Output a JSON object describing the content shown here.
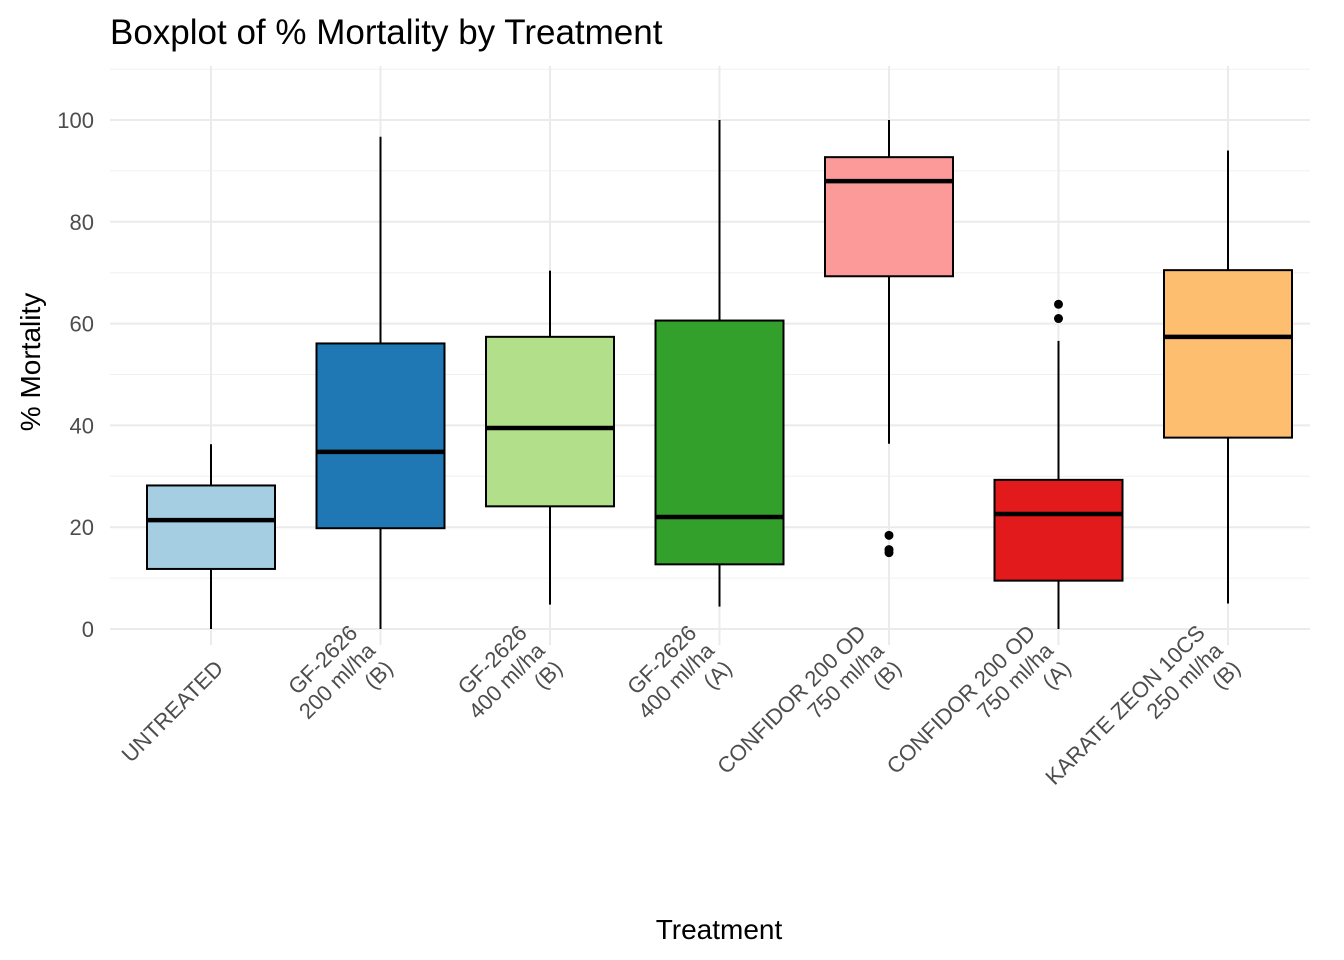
{
  "chart_data": {
    "type": "boxplot",
    "title": "Boxplot of % Mortality by Treatment",
    "xlabel": "Treatment",
    "ylabel": "% Mortality",
    "ylim": [
      -3,
      110
    ],
    "yticks": [
      0,
      20,
      40,
      60,
      80,
      100
    ],
    "grid": true,
    "legend": "none",
    "categories": [
      {
        "lines": [
          "UNTREATED"
        ]
      },
      {
        "lines": [
          "GF-2626",
          "200 ml/ha",
          "(B)"
        ]
      },
      {
        "lines": [
          "GF-2626",
          "400 ml/ha",
          "(B)"
        ]
      },
      {
        "lines": [
          "GF-2626",
          "400 ml/ha",
          "(A)"
        ]
      },
      {
        "lines": [
          "CONFIDOR 200 OD",
          "750 ml/ha",
          "(B)"
        ]
      },
      {
        "lines": [
          "CONFIDOR 200 OD",
          "750 ml/ha",
          "(A)"
        ]
      },
      {
        "lines": [
          "KARATE ZEON 10CS",
          "250 ml/ha",
          "(B)"
        ]
      }
    ],
    "boxes": [
      {
        "min": 0,
        "q1": 11.8,
        "median": 21.4,
        "q3": 28.2,
        "max": 36.3,
        "outliers": [],
        "color": "#a6cee3"
      },
      {
        "min": 0,
        "q1": 19.8,
        "median": 34.8,
        "q3": 56.1,
        "max": 96.7,
        "outliers": [],
        "color": "#1f78b4"
      },
      {
        "min": 4.8,
        "q1": 24.1,
        "median": 39.5,
        "q3": 57.4,
        "max": 70.4,
        "outliers": [],
        "color": "#b2df8a"
      },
      {
        "min": 4.4,
        "q1": 12.7,
        "median": 22.0,
        "q3": 60.6,
        "max": 100,
        "outliers": [],
        "color": "#33a02c"
      },
      {
        "min": 36.4,
        "q1": 69.3,
        "median": 88.0,
        "q3": 92.7,
        "max": 100,
        "outliers": [
          18.4,
          15.6,
          15.0
        ],
        "color": "#fb9a99"
      },
      {
        "min": 0,
        "q1": 9.5,
        "median": 22.6,
        "q3": 29.3,
        "max": 56.6,
        "outliers": [
          61.0,
          63.8
        ],
        "color": "#e31a1c"
      },
      {
        "min": 5.0,
        "q1": 37.6,
        "median": 57.4,
        "q3": 70.5,
        "max": 94.0,
        "outliers": [],
        "color": "#fdbf6f"
      }
    ]
  }
}
